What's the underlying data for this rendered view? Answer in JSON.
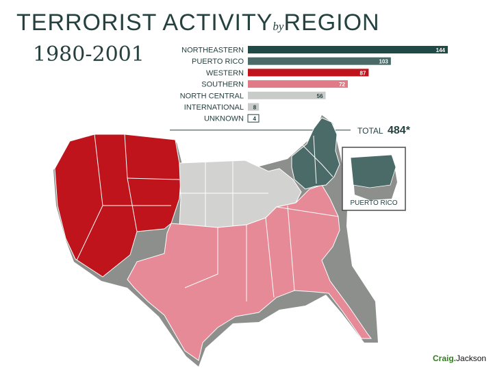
{
  "header": {
    "title_part1": "TERRORIST ACTIVITY",
    "title_by": "by",
    "title_part2": "REGION",
    "years": "1980-2001"
  },
  "chart_data": {
    "type": "bar",
    "orientation": "horizontal",
    "categories": [
      "NORTHEASTERN",
      "PUERTO RICO",
      "WESTERN",
      "SOUTHERN",
      "NORTH CENTRAL",
      "INTERNATIONAL",
      "UNKNOWN"
    ],
    "values": [
      144,
      103,
      87,
      72,
      56,
      8,
      4
    ],
    "value_labels": [
      "144",
      "103",
      "87",
      "72",
      "56",
      "8",
      "4"
    ],
    "colors": [
      "#1f4a46",
      "#4a6b68",
      "#c0141c",
      "#e07a86",
      "#c9cbc8",
      "#c9cbc8",
      "#ffffff"
    ],
    "total_label": "TOTAL",
    "total_value": "484*",
    "grid": false,
    "legend": "none"
  },
  "map": {
    "inset_label": "PUERTO RICO",
    "region_colors": {
      "western": "#c0141c",
      "southern": "#e58a96",
      "north_central": "#d2d3d0",
      "northeastern": "#4a6b68",
      "puerto_rico": "#4a6b68"
    }
  },
  "credit": {
    "first": "Craig.",
    "last": "Jackson"
  }
}
